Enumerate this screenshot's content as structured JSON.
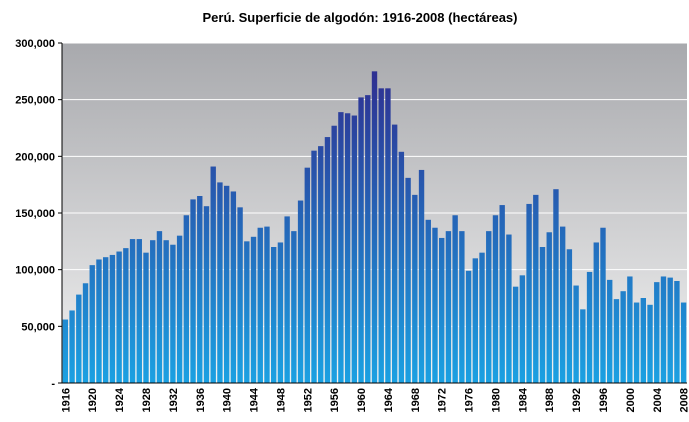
{
  "chart_data": {
    "type": "bar",
    "title": "Perú. Superficie de algodón: 1916-2008 (hectáreas)",
    "categories": [
      "1916",
      null,
      null,
      null,
      "1920",
      null,
      null,
      null,
      "1924",
      null,
      null,
      null,
      "1928",
      null,
      null,
      null,
      "1932",
      null,
      null,
      null,
      "1936",
      null,
      null,
      null,
      "1940",
      null,
      null,
      null,
      "1944",
      null,
      null,
      null,
      "1948",
      null,
      null,
      null,
      "1952",
      null,
      null,
      null,
      "1956",
      null,
      null,
      null,
      "1960",
      null,
      null,
      null,
      "1964",
      null,
      null,
      null,
      "1968",
      null,
      null,
      null,
      "1972",
      null,
      null,
      null,
      "1976",
      null,
      null,
      null,
      "1980",
      null,
      null,
      null,
      "1984",
      null,
      null,
      null,
      "1988",
      null,
      null,
      null,
      "1992",
      null,
      null,
      null,
      "1996",
      null,
      null,
      null,
      "2000",
      null,
      null,
      null,
      "2004",
      null,
      null,
      null,
      "2008"
    ],
    "values": [
      56000,
      64000,
      78000,
      88000,
      104000,
      109000,
      111000,
      113000,
      116000,
      119000,
      127000,
      127000,
      115000,
      126000,
      134000,
      126000,
      122000,
      130000,
      148000,
      162000,
      165000,
      156000,
      191000,
      177000,
      174000,
      169000,
      155000,
      125000,
      129000,
      137000,
      138000,
      120000,
      124000,
      147000,
      134000,
      161000,
      190000,
      205000,
      209000,
      217000,
      227000,
      239000,
      238000,
      236000,
      252000,
      254000,
      275000,
      260000,
      260000,
      228000,
      204000,
      181000,
      166000,
      188000,
      144000,
      137000,
      128000,
      134000,
      148000,
      134000,
      99000,
      110000,
      115000,
      134000,
      148000,
      157000,
      131000,
      85000,
      95000,
      158000,
      166000,
      120000,
      133000,
      171000,
      138000,
      118000,
      86000,
      65000,
      98000,
      124000,
      137000,
      91000,
      74000,
      81000,
      94000,
      71000,
      75000,
      69000,
      89000,
      94000,
      93000,
      90000,
      71000
    ],
    "colors": [
      "#2e3192",
      "#1ba1e2"
    ],
    "ylim": [
      0,
      300000
    ],
    "yticks": [
      {
        "value": 0,
        "label": "-"
      },
      {
        "value": 50000,
        "label": "50,000"
      },
      {
        "value": 100000,
        "label": "100,000"
      },
      {
        "value": 150000,
        "label": "150,000"
      },
      {
        "value": 200000,
        "label": "200,000"
      },
      {
        "value": 250000,
        "label": "250,000"
      },
      {
        "value": 300000,
        "label": "300,000"
      }
    ],
    "grid": true
  }
}
